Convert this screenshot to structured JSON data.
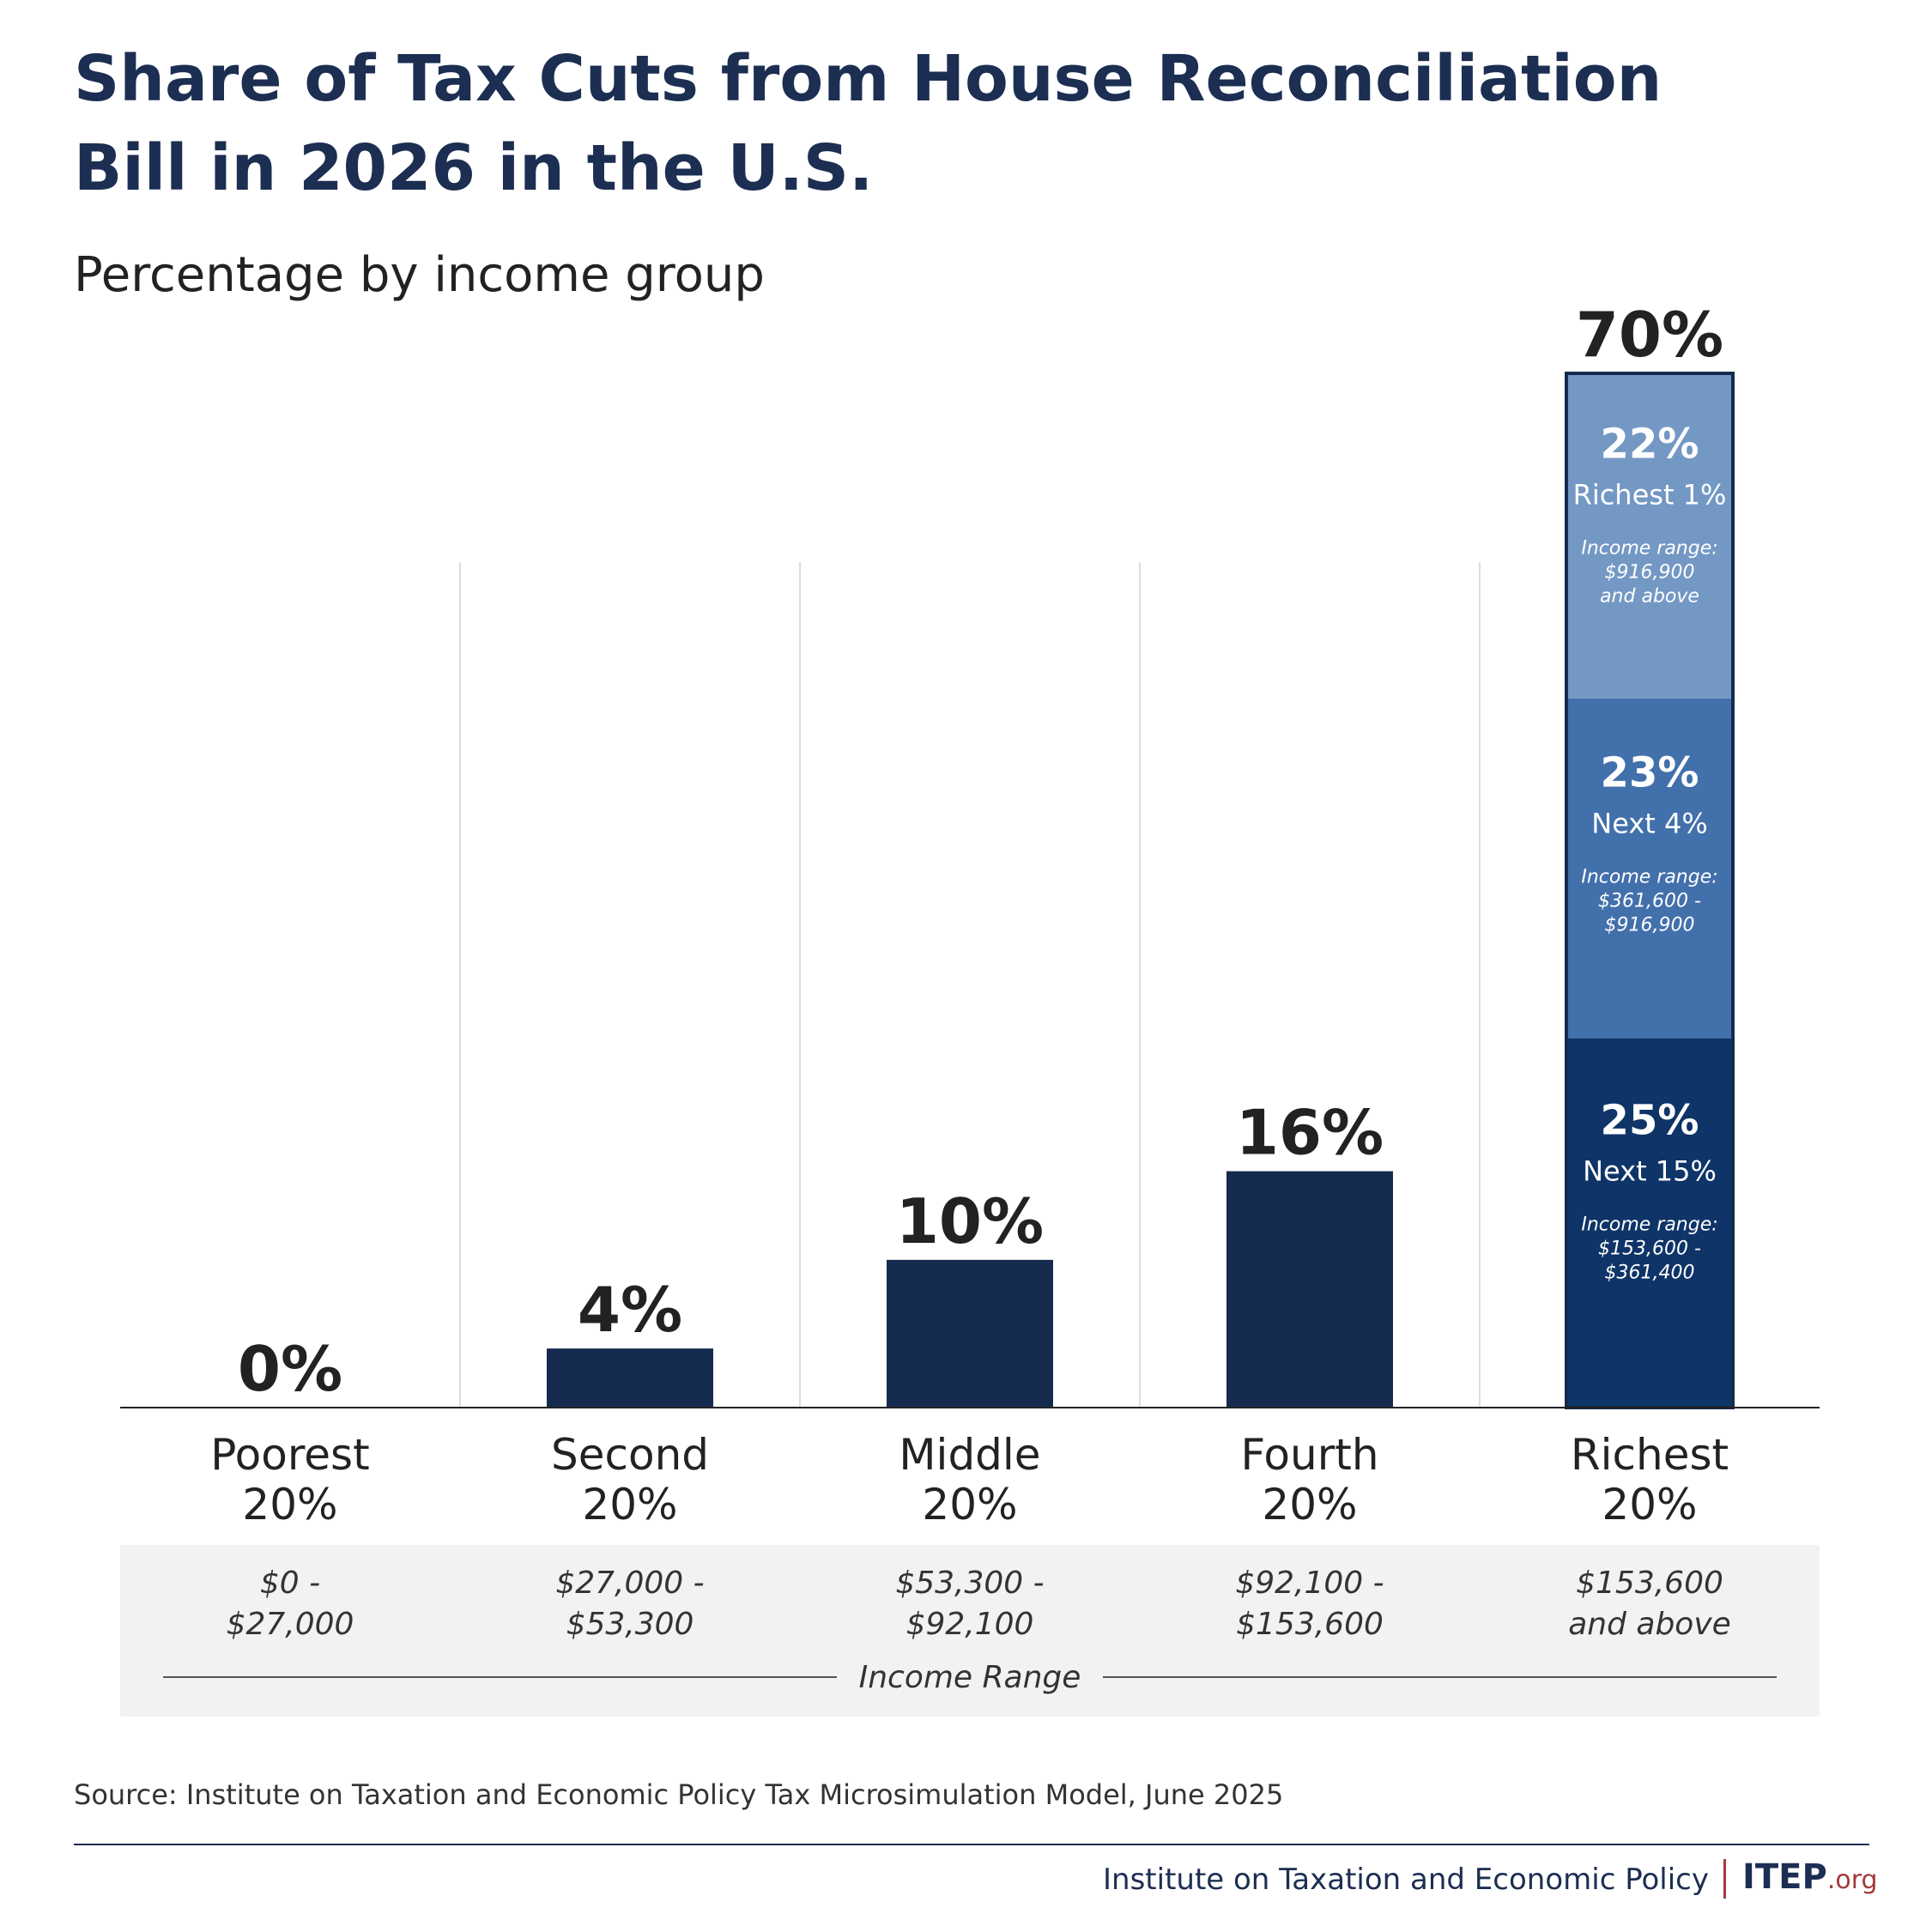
{
  "title_line1": "Share of Tax Cuts from House Reconciliation",
  "title_line2": "Bill in 2026 in the U.S.",
  "subtitle": "Percentage by income group",
  "chart_data": {
    "type": "bar",
    "y_unit": "%",
    "ylim": [
      0,
      70
    ],
    "grid": "vertical separators",
    "categories": [
      {
        "line1": "Poorest",
        "line2": "20%",
        "range1": "$0 -",
        "range2": "$27,000"
      },
      {
        "line1": "Second",
        "line2": "20%",
        "range1": "$27,000 -",
        "range2": "$53,300"
      },
      {
        "line1": "Middle",
        "line2": "20%",
        "range1": "$53,300 -",
        "range2": "$92,100"
      },
      {
        "line1": "Fourth",
        "line2": "20%",
        "range1": "$92,100 -",
        "range2": "$153,600"
      },
      {
        "line1": "Richest",
        "line2": "20%",
        "range1": "$153,600",
        "range2": "and above"
      }
    ],
    "values": [
      0,
      4,
      10,
      16,
      70
    ],
    "value_labels": [
      "0%",
      "4%",
      "10%",
      "16%",
      "70%"
    ],
    "stacked_breakdown": {
      "category_index": 4,
      "segments": [
        {
          "value": 25,
          "label": "25%",
          "name": "Next 15%",
          "range_title": "Income range:",
          "range1": "$153,600 -",
          "range2": "$361,400",
          "color": "#0f3468"
        },
        {
          "value": 23,
          "label": "23%",
          "name": "Next 4%",
          "range_title": "Income range:",
          "range1": "$361,600 -",
          "range2": "$916,900",
          "color": "#4270ab"
        },
        {
          "value": 22,
          "label": "22%",
          "name": "Richest 1%",
          "range_title": "Income range:",
          "range1": "$916,900",
          "range2": "and above",
          "color": "#7498c4"
        }
      ]
    },
    "x_axis_title": "Income Range",
    "bar_color": "#152a4f"
  },
  "source": "Source: Institute on Taxation and Economic Policy Tax Microsimulation Model, June 2025",
  "footer": {
    "org": "Institute on Taxation and Economic Policy",
    "logo_main": "ITEP",
    "logo_suffix": ".org"
  }
}
